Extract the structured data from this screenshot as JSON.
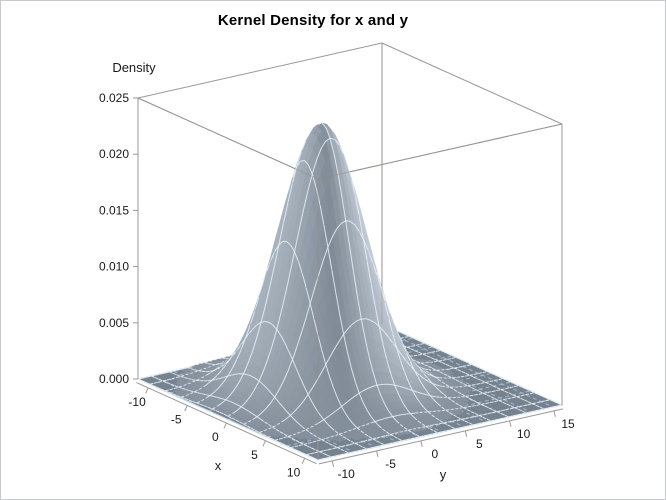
{
  "frame": {
    "background": "#ffffff",
    "border_color": "#c6cace"
  },
  "chart_data": {
    "type": "surface",
    "title": "Kernel Density for x and y",
    "xlabel": "x",
    "ylabel": "y",
    "zlabel": "Density",
    "x_ticks": {
      "values": [
        -10,
        -5,
        0,
        5,
        10
      ],
      "labels": [
        "-10",
        "-5",
        "0",
        "5",
        "10"
      ]
    },
    "y_ticks": {
      "values": [
        -10,
        -5,
        0,
        5,
        10,
        15
      ],
      "labels": [
        "-10",
        "-5",
        "0",
        "5",
        "10",
        "15"
      ]
    },
    "z_ticks": {
      "values": [
        0,
        0.005,
        0.01,
        0.015,
        0.02,
        0.025
      ],
      "labels": [
        "0.000",
        "0.005",
        "0.010",
        "0.015",
        "0.020",
        "0.025"
      ]
    },
    "x_range": [
      -11.5,
      11.5
    ],
    "y_range": [
      -11.5,
      16
    ],
    "z_range": [
      0,
      0.025
    ],
    "surface": {
      "model": "bivariate-normal-kde",
      "center": [
        -1,
        0
      ],
      "sigma": [
        3.4,
        3.9
      ],
      "peak_density": 0.024
    },
    "floor_grid_step": 2.5,
    "mesh_step": 2,
    "legend": "none",
    "colors": {
      "floor": "#76828E",
      "floor_grid": "#A6C3DE",
      "floor_edge": "#C9D9E7",
      "surface_dark": "#6E7A86",
      "surface_light": "#DCE4EE",
      "mesh_line": "#EAF2F9",
      "box_line": "#999999",
      "box_line_overlay": "rgba(150,138,126,0.45)",
      "tick_text": "#1a1a1a"
    }
  }
}
